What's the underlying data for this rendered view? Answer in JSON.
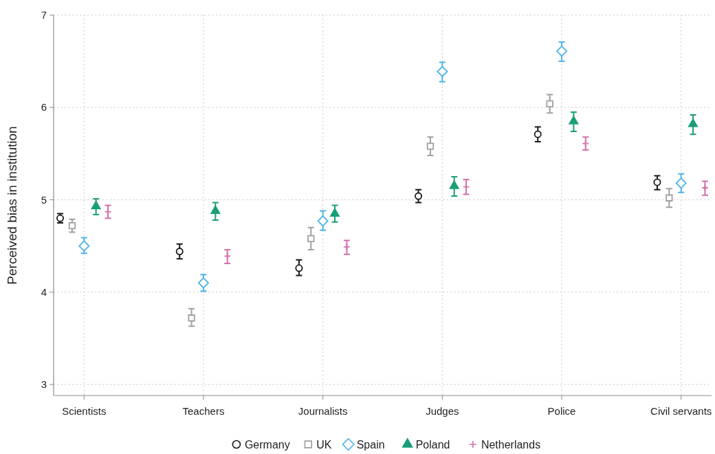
{
  "chart_data": {
    "type": "scatter",
    "ylabel": "Perceived bias in institution",
    "categories": [
      "Scientists",
      "Teachers",
      "Journalists",
      "Judges",
      "Police",
      "Civil servants"
    ],
    "ylim": [
      2.88,
      7
    ],
    "yticks": [
      3,
      4,
      5,
      6,
      7
    ],
    "grid": true,
    "legend": "bottom",
    "series": [
      {
        "name": "Germany",
        "color": "#1a1a1a",
        "marker": "circle",
        "values": [
          4.8,
          4.44,
          4.26,
          5.04,
          5.71,
          5.19
        ],
        "errors": [
          [
            4.75,
            4.85
          ],
          [
            4.36,
            4.52
          ],
          [
            4.18,
            4.35
          ],
          [
            4.97,
            5.11
          ],
          [
            5.63,
            5.79
          ],
          [
            5.11,
            5.26
          ]
        ]
      },
      {
        "name": "UK",
        "color": "#a0a0a0",
        "marker": "square",
        "values": [
          4.72,
          3.72,
          4.58,
          5.58,
          6.04,
          5.02
        ],
        "errors": [
          [
            4.65,
            4.79
          ],
          [
            3.63,
            3.82
          ],
          [
            4.46,
            4.7
          ],
          [
            5.48,
            5.68
          ],
          [
            5.94,
            6.14
          ],
          [
            4.92,
            5.12
          ]
        ]
      },
      {
        "name": "Spain",
        "color": "#4db3e6",
        "marker": "diamond",
        "values": [
          4.5,
          4.1,
          4.77,
          6.39,
          6.61,
          5.18
        ],
        "errors": [
          [
            4.42,
            4.59
          ],
          [
            4.01,
            4.19
          ],
          [
            4.67,
            4.88
          ],
          [
            6.28,
            6.49
          ],
          [
            6.5,
            6.71
          ],
          [
            5.08,
            5.28
          ]
        ]
      },
      {
        "name": "Poland",
        "color": "#1a9e77",
        "marker": "triangle",
        "values": [
          4.93,
          4.88,
          4.85,
          5.15,
          5.85,
          5.82
        ],
        "errors": [
          [
            4.84,
            5.01
          ],
          [
            4.78,
            4.97
          ],
          [
            4.76,
            4.94
          ],
          [
            5.04,
            5.25
          ],
          [
            5.74,
            5.95
          ],
          [
            5.71,
            5.92
          ]
        ]
      },
      {
        "name": "Netherlands",
        "color": "#d36fa8",
        "marker": "cross",
        "values": [
          4.87,
          4.39,
          4.49,
          5.14,
          5.61,
          5.13
        ],
        "errors": [
          [
            4.8,
            4.94
          ],
          [
            4.31,
            4.46
          ],
          [
            4.41,
            4.56
          ],
          [
            5.06,
            5.22
          ],
          [
            5.54,
            5.68
          ],
          [
            5.05,
            5.2
          ]
        ]
      }
    ]
  }
}
